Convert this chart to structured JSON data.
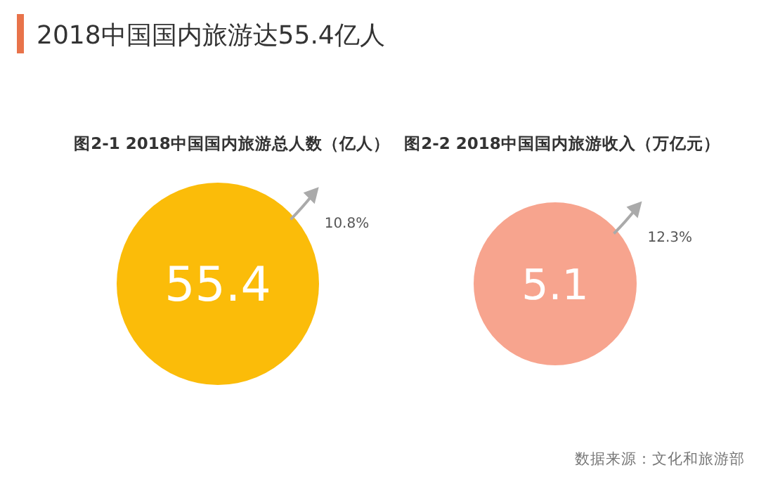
{
  "chart_data": [
    {
      "type": "other",
      "title": "2018中国国内旅游达55.4亿人",
      "annotations": [
        "数据来源：文化和旅游部"
      ]
    },
    {
      "type": "other",
      "title": "图2-1 2018中国国内旅游总人数（亿人）",
      "values": [
        55.4
      ],
      "data_labels": true,
      "color": "#fbbc09",
      "annotations": [
        "10.8%"
      ]
    },
    {
      "type": "other",
      "title": "图2-2 2018中国国内旅游收入（万亿元）",
      "values": [
        5.1
      ],
      "data_labels": true,
      "color": "#f7a48e",
      "annotations": [
        "12.3%"
      ]
    }
  ]
}
